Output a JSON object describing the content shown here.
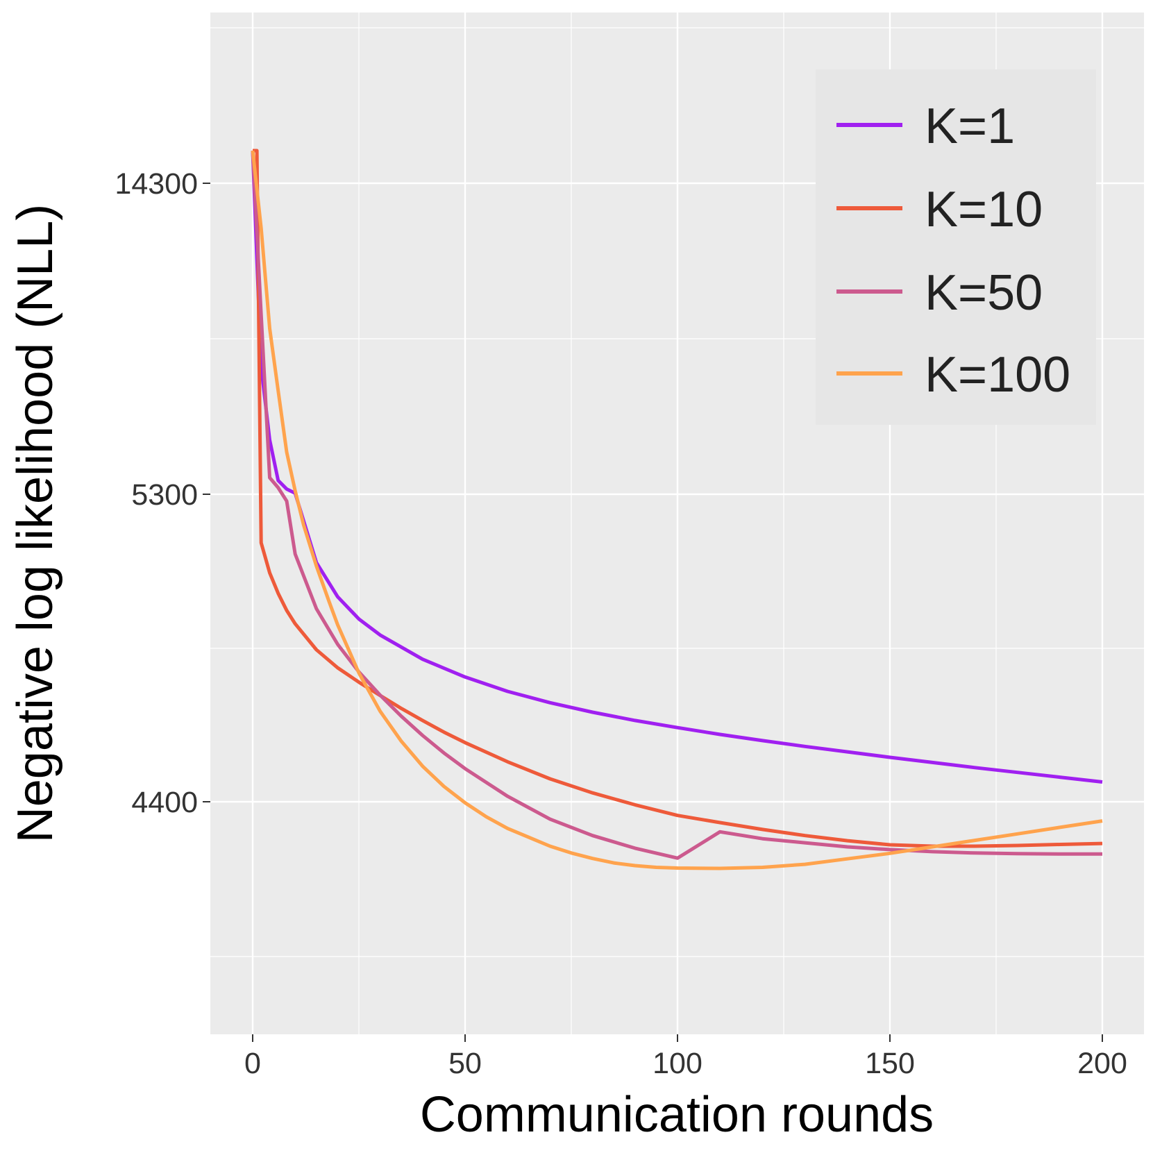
{
  "chart_data": {
    "type": "line",
    "title": "",
    "xlabel": "Communication rounds",
    "ylabel": "Negative log likelihood (NLL)",
    "xlim": [
      -10,
      210
    ],
    "x_ticks": [
      0,
      50,
      100,
      150,
      200
    ],
    "x_tick_labels": [
      "0",
      "50",
      "100",
      "150",
      "200"
    ],
    "y_scale": "ordinal-spaced (ticks equally spaced)",
    "y_ticks": [
      4400,
      5300,
      14300
    ],
    "y_tick_labels": [
      "4400",
      "5300",
      "14300"
    ],
    "grid": true,
    "legend_position": "top-right",
    "background": "#EBEBEB",
    "series": [
      {
        "name": "K=1",
        "color": "#A020F0",
        "x": [
          0,
          2,
          4,
          6,
          8,
          10,
          15,
          20,
          25,
          30,
          40,
          50,
          60,
          70,
          80,
          90,
          100,
          110,
          120,
          130,
          140,
          150,
          160,
          170,
          180,
          190,
          200
        ],
        "y": [
          15245,
          9000,
          6870,
          5700,
          5450,
          5330,
          5100,
          5000,
          4935,
          4888,
          4817,
          4765,
          4723,
          4690,
          4662,
          4638,
          4617,
          4597,
          4579,
          4562,
          4546,
          4530,
          4515,
          4500,
          4486,
          4472,
          4458
        ]
      },
      {
        "name": "K=10",
        "color": "#EE5A3A",
        "x": [
          0,
          1,
          2,
          4,
          6,
          8,
          10,
          15,
          20,
          25,
          30,
          35,
          40,
          45,
          50,
          60,
          70,
          80,
          90,
          100,
          110,
          120,
          130,
          140,
          150,
          160,
          170,
          180,
          190,
          200
        ],
        "y": [
          15245,
          15245,
          5158,
          5070,
          5010,
          4960,
          4921,
          4845,
          4792,
          4750,
          4711,
          4673,
          4638,
          4604,
          4573,
          4517,
          4467,
          4426,
          4391,
          4360,
          4339,
          4319,
          4301,
          4286,
          4274,
          4270,
          4270,
          4272,
          4275,
          4278
        ]
      },
      {
        "name": "K=50",
        "color": "#CC5A8E",
        "x": [
          0,
          2,
          4,
          6,
          8,
          10,
          15,
          20,
          25,
          30,
          35,
          40,
          45,
          50,
          60,
          70,
          80,
          90,
          100,
          110,
          120,
          130,
          140,
          150,
          160,
          170,
          180,
          190,
          200
        ],
        "y": [
          15245,
          10500,
          5780,
          5490,
          5280,
          5125,
          4965,
          4861,
          4780,
          4712,
          4650,
          4594,
          4543,
          4497,
          4416,
          4349,
          4301,
          4264,
          4235,
          4312,
          4292,
          4280,
          4268,
          4260,
          4254,
          4250,
          4248,
          4247,
          4247
        ]
      },
      {
        "name": "K=100",
        "color": "#FFA34D",
        "x": [
          0,
          2,
          4,
          6,
          8,
          10,
          12,
          15,
          18,
          20,
          25,
          30,
          35,
          40,
          45,
          50,
          55,
          60,
          65,
          70,
          75,
          80,
          85,
          90,
          95,
          100,
          110,
          120,
          130,
          140,
          150,
          160,
          170,
          180,
          190,
          200
        ],
        "y": [
          15245,
          13000,
          10100,
          8300,
          6520,
          5400,
          5210,
          5090,
          4985,
          4918,
          4777,
          4665,
          4577,
          4504,
          4445,
          4397,
          4356,
          4322,
          4296,
          4270,
          4250,
          4234,
          4221,
          4213,
          4208,
          4206,
          4205,
          4208,
          4217,
          4233,
          4249,
          4268,
          4287,
          4306,
          4325,
          4344
        ]
      }
    ]
  },
  "legend": {
    "items": [
      "K=1",
      "K=10",
      "K=50",
      "K=100"
    ]
  }
}
